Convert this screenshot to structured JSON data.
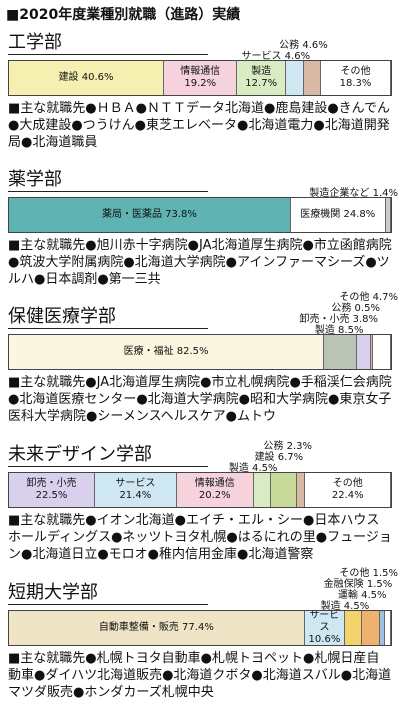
{
  "title": "■2020年度業種別就職（進路）実績",
  "sections": [
    {
      "name": "工学部",
      "segments": [
        {
          "name": "建設",
          "value": 40.6,
          "label": "40.6%",
          "color": "#f5efb0"
        },
        {
          "name": "情報通信",
          "value": 19.2,
          "label": "19.2%",
          "color": "#f6d3dc"
        },
        {
          "name": "製造",
          "value": 12.7,
          "label": "12.7%",
          "color": "#d9ebc2"
        },
        {
          "name": "サービス",
          "value": 4.6,
          "label": "4.6%",
          "color": "#cfe6f3"
        },
        {
          "name": "公務",
          "value": 4.6,
          "label": "4.6%",
          "color": "#d9b9a5"
        },
        {
          "name": "その他",
          "value": 18.3,
          "label": "18.3%",
          "color": "#ffffff"
        }
      ],
      "employers": "■主な就職先●ＨＢＡ●ＮＴＴデータ北海道●鹿島建設●きんでん●大成建設●つうけん●東芝エレベータ●北海道電力●北海道開発局●北海道職員"
    },
    {
      "name": "薬学部",
      "segments": [
        {
          "name": "薬局・医薬品",
          "value": 73.8,
          "label": "73.8%",
          "color": "#5fb3b3"
        },
        {
          "name": "医療機関",
          "value": 24.8,
          "label": "24.8%",
          "color": "#ffffff"
        },
        {
          "name": "製造企業など",
          "value": 1.4,
          "label": "1.4%",
          "color": "#cccccc"
        }
      ],
      "employers": "■主な就職先●旭川赤十字病院●JA北海道厚生病院●市立函館病院●筑波大学附属病院●北海道大学病院●アインファーマシーズ●ツルハ●日本調剤●第一三共"
    },
    {
      "name": "保健医療学部",
      "segments": [
        {
          "name": "医療・福祉",
          "value": 82.5,
          "label": "82.5%",
          "color": "#fbf6e0"
        },
        {
          "name": "製造",
          "value": 8.5,
          "label": "8.5%",
          "color": "#b9c4b4"
        },
        {
          "name": "卸売・小売",
          "value": 3.8,
          "label": "3.8%",
          "color": "#d8d0ec"
        },
        {
          "name": "公務",
          "value": 0.5,
          "label": "0.5%",
          "color": "#d9b9a5"
        },
        {
          "name": "その他",
          "value": 4.7,
          "label": "4.7%",
          "color": "#ffffff"
        }
      ],
      "employers": "■主な就職先●JA北海道厚生病院●市立札幌病院●手稲渓仁会病院●北海道医療センター●北海道大学病院●昭和大学病院●東京女子医科大学病院●シーメンスヘルスケア●ムトウ"
    },
    {
      "name": "未来デザイン学部",
      "segments": [
        {
          "name": "卸売・小売",
          "value": 22.5,
          "label": "22.5%",
          "color": "#d8d0ec"
        },
        {
          "name": "サービス",
          "value": 21.4,
          "label": "21.4%",
          "color": "#cfe6f3"
        },
        {
          "name": "情報通信",
          "value": 20.2,
          "label": "20.2%",
          "color": "#f6d3dc"
        },
        {
          "name": "製造",
          "value": 4.5,
          "label": "4.5%",
          "color": "#d9ebc2"
        },
        {
          "name": "建設",
          "value": 6.7,
          "label": "6.7%",
          "color": "#c9d99a"
        },
        {
          "name": "公務",
          "value": 2.3,
          "label": "2.3%",
          "color": "#d9b9a5"
        },
        {
          "name": "その他",
          "value": 22.4,
          "label": "22.4%",
          "color": "#ffffff"
        }
      ],
      "employers": "■主な就職先●イオン北海道●エイチ・エル・シー●日本ハウスホールディングス●ネッツトヨタ札幌●はるにれの里●フュージョン●北海道日立●モロオ●稚内信用金庫●北海道警察"
    },
    {
      "name": "短期大学部",
      "segments": [
        {
          "name": "自動車整備・販売",
          "value": 77.4,
          "label": "77.4%",
          "color": "#efe4c6"
        },
        {
          "name": "サービス",
          "value": 10.6,
          "label": "10.6%",
          "color": "#cfe6f3"
        },
        {
          "name": "製造",
          "value": 4.5,
          "label": "4.5%",
          "color": "#f3d36a"
        },
        {
          "name": "運輸",
          "value": 4.5,
          "label": "4.5%",
          "color": "#f0b070"
        },
        {
          "name": "金融保険",
          "value": 1.5,
          "label": "1.5%",
          "color": "#9fc2e0"
        },
        {
          "name": "その他",
          "value": 1.5,
          "label": "1.5%",
          "color": "#ffffff"
        }
      ],
      "employers": "■主な就職先●札幌トヨタ自動車●札幌トヨペット●札幌日産自動車●ダイハツ北海道販売●北海道クボタ●北海道スバル●北海道マツダ販売●ホンダカーズ札幌中央"
    }
  ]
}
